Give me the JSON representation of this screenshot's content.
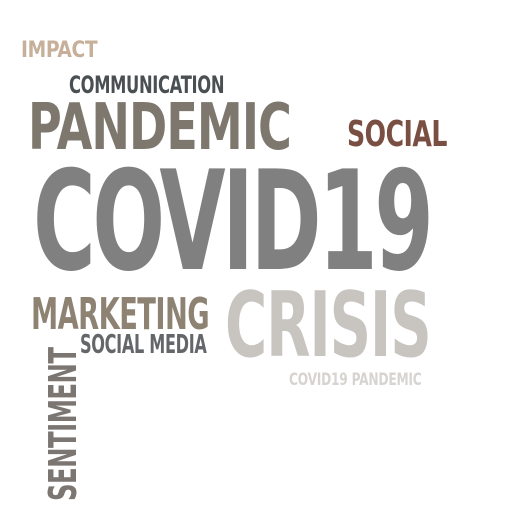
{
  "word_cloud": {
    "words": [
      {
        "text": "IMPACT",
        "color": "#c6b09a"
      },
      {
        "text": "COMMUNICATION",
        "color": "#4a4f51"
      },
      {
        "text": "PANDEMIC",
        "color": "#7d776d"
      },
      {
        "text": "SOCIAL",
        "color": "#7a4f43"
      },
      {
        "text": "COVID19",
        "color": "#808080"
      },
      {
        "text": "MARKETING",
        "color": "#8e8373"
      },
      {
        "text": "CRISIS",
        "color": "#c8c5c1"
      },
      {
        "text": "SOCIAL MEDIA",
        "color": "#64676a"
      },
      {
        "text": "COVID19 PANDEMIC",
        "color": "#d7d4d0"
      },
      {
        "text": "SENTIMENT",
        "color": "#7c7672"
      }
    ]
  }
}
